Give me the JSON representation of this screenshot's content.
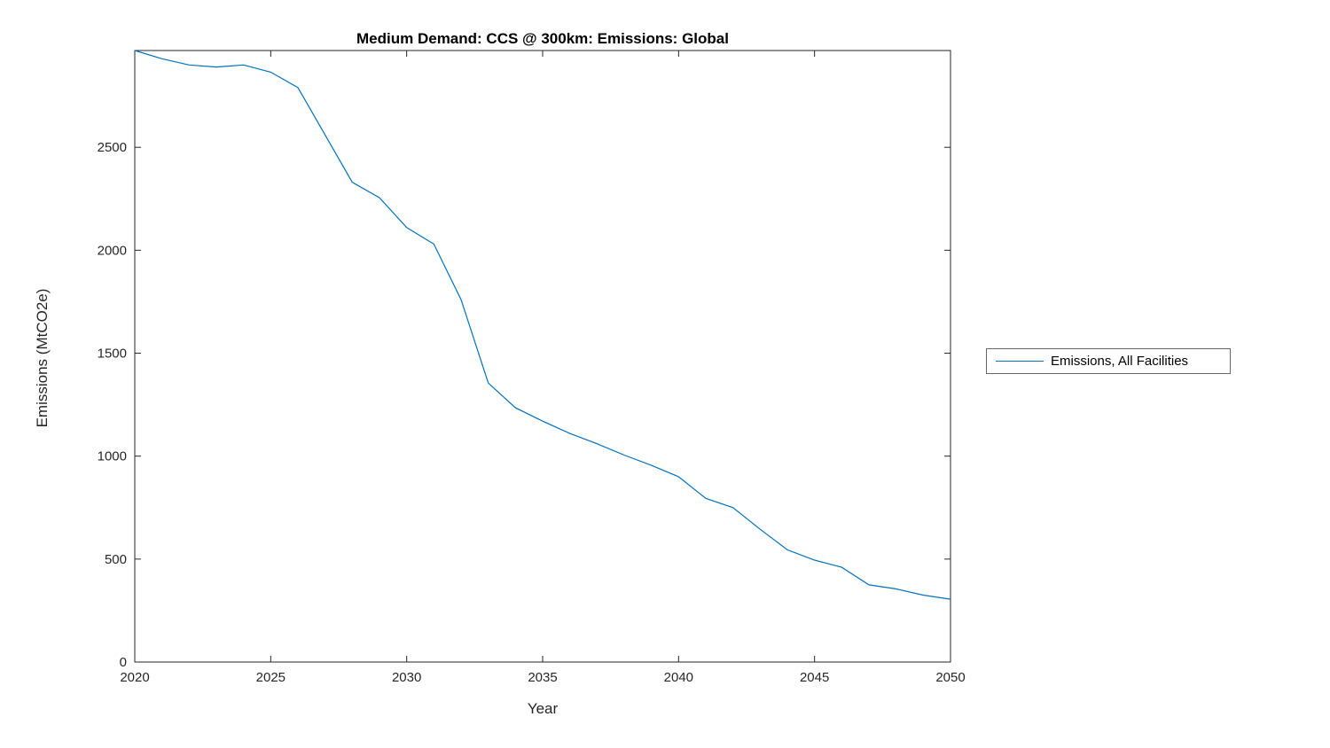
{
  "chart": {
    "title": "Medium Demand: CCS @ 300km: Emissions: Global",
    "xlabel": "Year",
    "ylabel": "Emissions (MtCO2e)",
    "legend": {
      "label": "Emissions, All Facilities"
    }
  },
  "chart_data": {
    "type": "line",
    "title": "Medium Demand: CCS @ 300km: Emissions: Global",
    "xlabel": "Year",
    "ylabel": "Emissions (MtCO2e)",
    "grid": false,
    "legend_position": "right-outside",
    "line_color": "#0072BD",
    "axis_color": "#262626",
    "xlim": [
      2020,
      2050
    ],
    "ylim": [
      0,
      2970
    ],
    "xticks": [
      2020,
      2025,
      2030,
      2035,
      2040,
      2045,
      2050
    ],
    "yticks": [
      0,
      500,
      1000,
      1500,
      2000,
      2500
    ],
    "x": [
      2020,
      2021,
      2022,
      2023,
      2024,
      2025,
      2026,
      2027,
      2028,
      2029,
      2030,
      2031,
      2032,
      2033,
      2034,
      2035,
      2036,
      2037,
      2038,
      2039,
      2040,
      2041,
      2042,
      2043,
      2044,
      2045,
      2046,
      2047,
      2048,
      2049,
      2050
    ],
    "series": [
      {
        "name": "Emissions, All Facilities",
        "values": [
          2970,
          2930,
          2900,
          2890,
          2900,
          2865,
          2790,
          2560,
          2330,
          2255,
          2110,
          2030,
          1760,
          1355,
          1235,
          1170,
          1110,
          1060,
          1005,
          955,
          900,
          795,
          750,
          645,
          545,
          495,
          460,
          375,
          355,
          325,
          305
        ]
      }
    ]
  }
}
